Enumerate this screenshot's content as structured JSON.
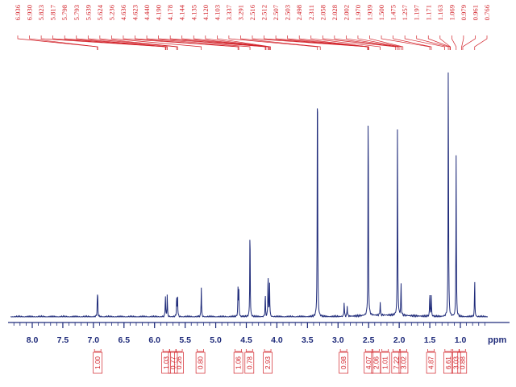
{
  "chart_data": {
    "type": "line",
    "xlabel": "ppm",
    "x_reversed": true,
    "xlim": [
      8.35,
      0.55
    ],
    "x_ticks": [
      "8.0",
      "7.5",
      "7.0",
      "6.5",
      "6.0",
      "5.5",
      "5.0",
      "4.5",
      "4.0",
      "3.5",
      "3.0",
      "2.5",
      "2.0",
      "1.5",
      "1.0",
      "ppm"
    ],
    "x_tick_values": [
      8.0,
      7.5,
      7.0,
      6.5,
      6.0,
      5.5,
      5.0,
      4.5,
      4.0,
      3.5,
      3.0,
      2.5,
      2.0,
      1.5,
      1.0
    ],
    "peak_labels": [
      "6.936",
      "6.930",
      "5.823",
      "5.817",
      "5.798",
      "5.793",
      "5.639",
      "5.624",
      "5.236",
      "4.636",
      "4.623",
      "4.440",
      "4.190",
      "4.178",
      "4.144",
      "4.135",
      "4.120",
      "4.103",
      "3.337",
      "3.291",
      "2.516",
      "2.512",
      "2.507",
      "2.503",
      "2.498",
      "2.311",
      "2.058",
      "2.028",
      "2.002",
      "1.970",
      "1.939",
      "1.500",
      "1.475",
      "1.257",
      "1.197",
      "1.171",
      "1.163",
      "1.069",
      "0.979",
      "0.961",
      "0.766"
    ],
    "integrals": [
      {
        "x": 6.93,
        "label": "1.00"
      },
      {
        "x": 5.81,
        "label": "1.03"
      },
      {
        "x": 5.7,
        "label": "0.77"
      },
      {
        "x": 5.6,
        "label": "0.26"
      },
      {
        "x": 5.25,
        "label": "0.80"
      },
      {
        "x": 4.63,
        "label": "1.06"
      },
      {
        "x": 4.45,
        "label": "0.78"
      },
      {
        "x": 4.15,
        "label": "2.93"
      },
      {
        "x": 2.91,
        "label": "0.98"
      },
      {
        "x": 2.5,
        "label": "4.07"
      },
      {
        "x": 2.38,
        "label": "2.06"
      },
      {
        "x": 2.23,
        "label": "1.01"
      },
      {
        "x": 2.05,
        "label": "7.22"
      },
      {
        "x": 1.93,
        "label": "3.02"
      },
      {
        "x": 1.48,
        "label": "4.87"
      },
      {
        "x": 1.2,
        "label": "6.61"
      },
      {
        "x": 1.07,
        "label": "3.03"
      },
      {
        "x": 0.97,
        "label": "0.88"
      }
    ],
    "peaks": [
      {
        "ppm": 6.936,
        "height": 0.06
      },
      {
        "ppm": 6.93,
        "height": 0.06
      },
      {
        "ppm": 5.823,
        "height": 0.085
      },
      {
        "ppm": 5.793,
        "height": 0.085
      },
      {
        "ppm": 5.639,
        "height": 0.075
      },
      {
        "ppm": 5.624,
        "height": 0.075
      },
      {
        "ppm": 5.236,
        "height": 0.11
      },
      {
        "ppm": 4.636,
        "height": 0.1
      },
      {
        "ppm": 4.623,
        "height": 0.1
      },
      {
        "ppm": 4.44,
        "height": 0.35
      },
      {
        "ppm": 4.19,
        "height": 0.085
      },
      {
        "ppm": 4.144,
        "height": 0.17
      },
      {
        "ppm": 4.12,
        "height": 0.13
      },
      {
        "ppm": 3.337,
        "height": 1.0
      },
      {
        "ppm": 2.9,
        "height": 0.055
      },
      {
        "ppm": 2.85,
        "height": 0.04
      },
      {
        "ppm": 2.507,
        "height": 0.82
      },
      {
        "ppm": 2.311,
        "height": 0.05
      },
      {
        "ppm": 2.028,
        "height": 0.71
      },
      {
        "ppm": 1.97,
        "height": 0.12
      },
      {
        "ppm": 1.5,
        "height": 0.09
      },
      {
        "ppm": 1.475,
        "height": 0.075
      },
      {
        "ppm": 1.197,
        "height": 1.0
      },
      {
        "ppm": 1.069,
        "height": 0.59
      },
      {
        "ppm": 0.766,
        "height": 0.14
      }
    ],
    "colors": {
      "spectrum": "#1f2b7a",
      "labels": "#d2232a"
    }
  }
}
